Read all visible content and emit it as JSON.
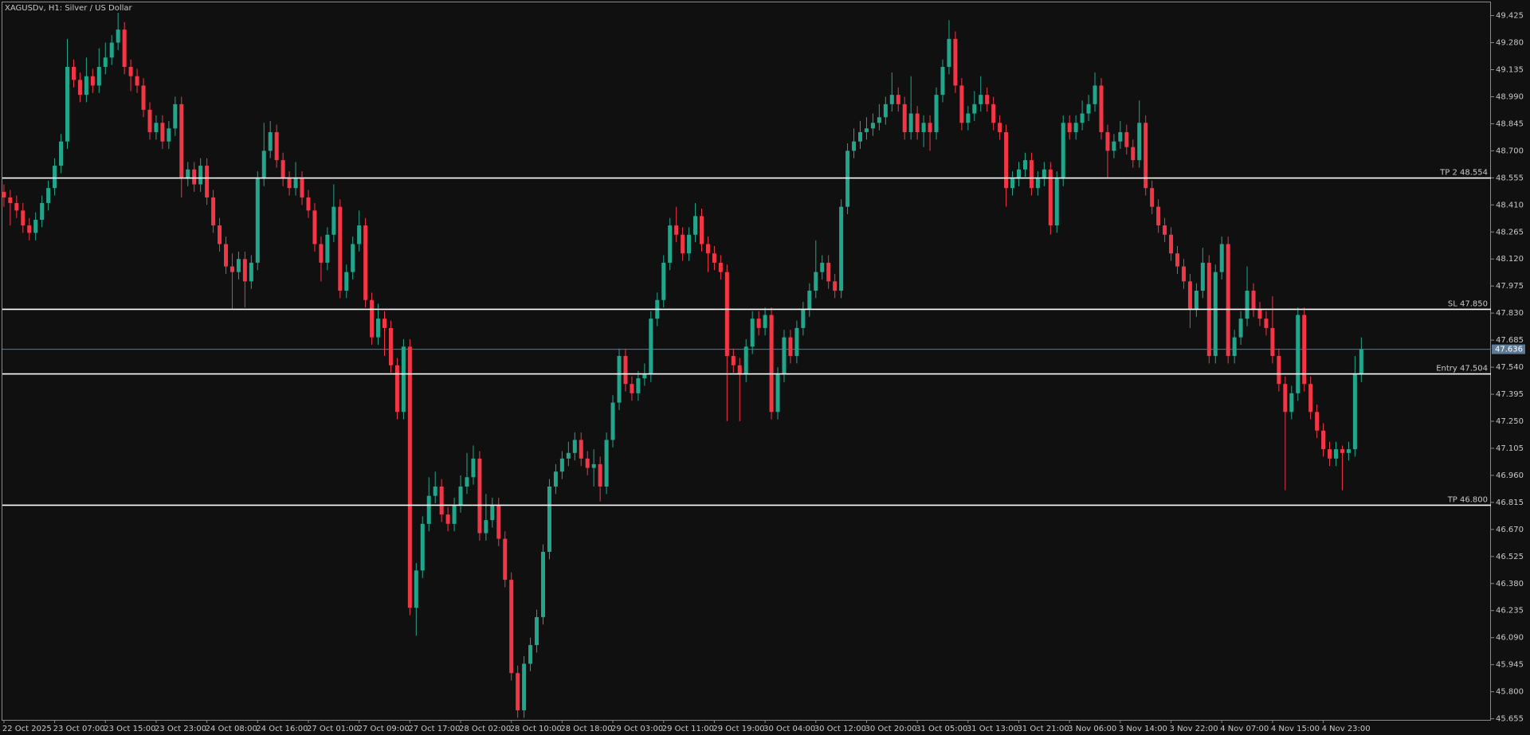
{
  "chart_data": {
    "type": "candlestick",
    "title": "XAGUSDv, H1:  Silver / US Dollar",
    "up_color": "#22a68b",
    "down_color": "#f23645",
    "level_color": "#ffffff",
    "last_price_color": "#5d7a96",
    "ylim": [
      45.649,
      49.5
    ],
    "yticks": [
      49.425,
      {
        "value": 49.28,
        "label": "49.280"
      },
      49.135,
      {
        "value": 48.99,
        "label": "48.990"
      },
      48.845,
      {
        "value": 48.7,
        "label": "48.700"
      },
      48.555,
      {
        "value": 48.41,
        "label": "48.410"
      },
      48.265,
      {
        "value": 48.12,
        "label": "48.120"
      },
      47.975,
      {
        "value": 47.83,
        "label": "47.830"
      },
      47.685,
      {
        "value": 47.54,
        "label": "47.540"
      },
      47.395,
      {
        "value": 47.25,
        "label": "47.250"
      },
      47.105,
      {
        "value": 46.96,
        "label": "46.960"
      },
      46.815,
      {
        "value": 46.67,
        "label": "46.670"
      },
      46.525,
      {
        "value": 46.38,
        "label": "46.380"
      },
      46.235,
      {
        "value": 46.09,
        "label": "46.090"
      },
      45.945,
      {
        "value": 45.8,
        "label": "45.800"
      },
      45.655
    ],
    "levels": [
      {
        "label": "TP 2 48.554",
        "value": 48.554
      },
      {
        "label": "SL 47.850",
        "value": 47.85
      },
      {
        "label": "Entry 47.504",
        "value": 47.504
      },
      {
        "label": "TP 46.800",
        "value": 46.8
      }
    ],
    "last_price": 47.636,
    "categories": [
      "22 Oct 2025",
      null,
      null,
      null,
      null,
      null,
      null,
      null,
      "23 Oct 07:00",
      null,
      null,
      null,
      null,
      null,
      null,
      null,
      "23 Oct 15:00",
      null,
      null,
      null,
      null,
      null,
      null,
      null,
      "23 Oct 23:00",
      null,
      null,
      null,
      null,
      null,
      null,
      null,
      "24 Oct 08:00",
      null,
      null,
      null,
      null,
      null,
      null,
      null,
      "24 Oct 16:00",
      null,
      null,
      null,
      null,
      null,
      null,
      null,
      "27 Oct 01:00",
      null,
      null,
      null,
      null,
      null,
      null,
      null,
      "27 Oct 09:00",
      null,
      null,
      null,
      null,
      null,
      null,
      null,
      "27 Oct 17:00",
      null,
      null,
      null,
      null,
      null,
      null,
      null,
      "28 Oct 02:00",
      null,
      null,
      null,
      null,
      null,
      null,
      null,
      "28 Oct 10:00",
      null,
      null,
      null,
      null,
      null,
      null,
      null,
      "28 Oct 18:00",
      null,
      null,
      null,
      null,
      null,
      null,
      null,
      "29 Oct 03:00",
      null,
      null,
      null,
      null,
      null,
      null,
      null,
      "29 Oct 11:00",
      null,
      null,
      null,
      null,
      null,
      null,
      null,
      "29 Oct 19:00",
      null,
      null,
      null,
      null,
      null,
      null,
      null,
      "30 Oct 04:00",
      null,
      null,
      null,
      null,
      null,
      null,
      null,
      "30 Oct 12:00",
      null,
      null,
      null,
      null,
      null,
      null,
      null,
      "30 Oct 20:00",
      null,
      null,
      null,
      null,
      null,
      null,
      null,
      "31 Oct 05:00",
      null,
      null,
      null,
      null,
      null,
      null,
      null,
      "31 Oct 13:00",
      null,
      null,
      null,
      null,
      null,
      null,
      null,
      "31 Oct 21:00",
      null,
      null,
      null,
      null,
      null,
      null,
      null,
      "3 Nov 06:00",
      null,
      null,
      null,
      null,
      null,
      null,
      null,
      "3 Nov 14:00",
      null,
      null,
      null,
      null,
      null,
      null,
      null,
      "3 Nov 22:00",
      null,
      null,
      null,
      null,
      null,
      null,
      null,
      "4 Nov 07:00",
      null,
      null,
      null,
      null,
      null,
      null,
      null,
      "4 Nov 15:00",
      null,
      null,
      null,
      null,
      null,
      null,
      null,
      "4 Nov 23:00",
      null,
      null,
      null,
      null,
      null,
      null
    ],
    "open": [
      48.48,
      48.45,
      48.42,
      48.38,
      48.3,
      48.26,
      48.33,
      48.42,
      48.5,
      48.62,
      48.75,
      49.15,
      49.08,
      49.0,
      49.1,
      49.05,
      49.15,
      49.2,
      49.28,
      49.35,
      49.15,
      49.1,
      49.05,
      48.92,
      48.8,
      48.85,
      48.75,
      48.82,
      48.95,
      48.55,
      48.6,
      48.52,
      48.62,
      48.45,
      48.3,
      48.2,
      48.08,
      48.05,
      48.12,
      48.0,
      48.1,
      48.55,
      48.7,
      48.8,
      48.65,
      48.55,
      48.5,
      48.55,
      48.45,
      48.38,
      48.2,
      48.1,
      48.25,
      48.4,
      47.95,
      48.05,
      48.2,
      48.3,
      47.9,
      47.7,
      47.8,
      47.75,
      47.55,
      47.3,
      47.65,
      46.25,
      46.45,
      46.7,
      46.85,
      46.9,
      46.75,
      46.7,
      46.8,
      46.9,
      46.95,
      47.05,
      46.65,
      46.72,
      46.8,
      46.62,
      46.4,
      45.9,
      45.7,
      45.95,
      46.05,
      46.2,
      46.55,
      46.9,
      46.98,
      47.05,
      47.08,
      47.15,
      47.05,
      47.0,
      47.02,
      46.9,
      47.15,
      47.35,
      47.6,
      47.45,
      47.4,
      47.48,
      47.5,
      47.8,
      47.9,
      48.1,
      48.3,
      48.25,
      48.15,
      48.25,
      48.35,
      48.2,
      48.15,
      48.1,
      48.05,
      47.6,
      47.55,
      47.5,
      47.65,
      47.8,
      47.75,
      47.82,
      47.3,
      47.5,
      47.7,
      47.6,
      47.75,
      47.85,
      47.95,
      48.05,
      48.1,
      48.0,
      47.95,
      48.4,
      48.7,
      48.75,
      48.8,
      48.82,
      48.85,
      48.88,
      48.95,
      49.0,
      48.95,
      48.8,
      48.9,
      48.8,
      48.85,
      48.8,
      49.0,
      49.15,
      49.3,
      49.05,
      48.85,
      48.9,
      48.95,
      49.0,
      48.95,
      48.85,
      48.8,
      48.5,
      48.55,
      48.6,
      48.65,
      48.5,
      48.55,
      48.6,
      48.3,
      48.55,
      48.85,
      48.8,
      48.85,
      48.9,
      48.95,
      49.05,
      48.8,
      48.7,
      48.75,
      48.8,
      48.72,
      48.65,
      48.85,
      48.5,
      48.4,
      48.3,
      48.25,
      48.15,
      48.08,
      48.0,
      47.85,
      47.95,
      48.1,
      47.6,
      48.05,
      48.2,
      47.6,
      47.7,
      47.8,
      47.95,
      47.85,
      47.8,
      47.75,
      47.6,
      47.45,
      47.3,
      47.4,
      47.82,
      47.45,
      47.3,
      47.2,
      47.1,
      47.05,
      47.1,
      47.08,
      47.1,
      47.5
    ],
    "high": [
      48.52,
      48.49,
      48.46,
      48.42,
      48.34,
      48.37,
      48.46,
      48.54,
      48.66,
      48.79,
      49.3,
      49.19,
      49.12,
      49.2,
      49.14,
      49.25,
      49.28,
      49.32,
      49.44,
      49.39,
      49.19,
      49.14,
      49.09,
      48.96,
      48.89,
      48.89,
      48.86,
      48.99,
      48.99,
      48.64,
      48.64,
      48.66,
      48.66,
      48.49,
      48.34,
      48.24,
      48.15,
      48.16,
      48.16,
      48.14,
      48.59,
      48.85,
      48.86,
      48.84,
      48.69,
      48.59,
      48.64,
      48.59,
      48.49,
      48.42,
      48.24,
      48.29,
      48.52,
      48.44,
      48.09,
      48.24,
      48.38,
      48.34,
      47.94,
      47.88,
      47.84,
      47.79,
      47.59,
      47.69,
      47.69,
      46.49,
      46.74,
      46.95,
      46.98,
      46.94,
      46.79,
      46.84,
      46.96,
      47.08,
      47.12,
      47.09,
      46.86,
      46.84,
      46.84,
      46.66,
      46.44,
      45.94,
      45.99,
      46.09,
      46.24,
      46.59,
      46.94,
      47.02,
      47.09,
      47.14,
      47.19,
      47.19,
      47.09,
      47.1,
      47.06,
      47.19,
      47.39,
      47.64,
      47.64,
      47.49,
      47.52,
      47.56,
      47.84,
      47.94,
      48.14,
      48.34,
      48.4,
      48.29,
      48.29,
      48.42,
      48.39,
      48.24,
      48.19,
      48.14,
      48.09,
      47.64,
      47.59,
      47.69,
      47.84,
      47.84,
      47.86,
      47.86,
      47.54,
      47.74,
      47.74,
      47.79,
      47.89,
      47.99,
      48.22,
      48.14,
      48.14,
      48.04,
      48.44,
      48.74,
      48.82,
      48.86,
      48.88,
      48.9,
      48.95,
      48.99,
      49.12,
      49.04,
      48.99,
      49.1,
      48.94,
      48.89,
      48.89,
      49.04,
      49.19,
      49.4,
      49.34,
      49.09,
      48.94,
      49.02,
      49.1,
      49.04,
      48.99,
      48.89,
      48.84,
      48.59,
      48.64,
      48.69,
      48.69,
      48.59,
      48.64,
      48.64,
      48.59,
      48.89,
      48.89,
      48.89,
      48.97,
      49.0,
      49.12,
      49.09,
      48.84,
      48.79,
      48.86,
      48.84,
      48.76,
      48.97,
      48.89,
      48.54,
      48.44,
      48.34,
      48.29,
      48.19,
      48.12,
      48.04,
      47.99,
      48.18,
      48.14,
      48.09,
      48.24,
      48.24,
      47.74,
      47.84,
      48.08,
      47.99,
      47.89,
      47.84,
      47.92,
      47.64,
      47.49,
      47.44,
      47.86,
      47.86,
      47.49,
      47.34,
      47.24,
      47.14,
      47.14,
      47.12,
      47.14,
      47.6,
      47.7
    ],
    "low": [
      48.4,
      48.3,
      48.34,
      48.26,
      48.22,
      48.22,
      48.29,
      48.38,
      48.46,
      48.58,
      48.71,
      49.04,
      48.96,
      48.96,
      49.01,
      49.01,
      49.11,
      49.16,
      49.24,
      49.11,
      49.02,
      49.01,
      48.88,
      48.76,
      48.76,
      48.71,
      48.71,
      48.78,
      48.45,
      48.51,
      48.48,
      48.48,
      48.41,
      48.26,
      48.16,
      48.04,
      47.85,
      48.01,
      47.86,
      47.96,
      48.06,
      48.51,
      48.66,
      48.61,
      48.51,
      48.46,
      48.46,
      48.41,
      48.34,
      48.16,
      48.0,
      48.06,
      48.21,
      47.91,
      47.91,
      48.01,
      48.16,
      47.86,
      47.66,
      47.66,
      47.6,
      47.51,
      47.26,
      47.26,
      46.21,
      46.1,
      46.41,
      46.66,
      46.81,
      46.71,
      46.66,
      46.66,
      46.76,
      46.86,
      46.91,
      46.61,
      46.61,
      46.68,
      46.58,
      46.36,
      45.86,
      45.66,
      45.66,
      45.91,
      46.01,
      46.16,
      46.51,
      46.86,
      46.94,
      47.01,
      47.04,
      47.01,
      46.96,
      46.9,
      46.82,
      46.86,
      47.11,
      47.31,
      47.41,
      47.36,
      47.36,
      47.44,
      47.46,
      47.76,
      47.86,
      48.06,
      48.21,
      48.11,
      48.11,
      48.21,
      48.16,
      48.05,
      48.06,
      48.01,
      47.25,
      47.51,
      47.25,
      47.46,
      47.61,
      47.71,
      47.71,
      47.26,
      47.26,
      47.46,
      47.56,
      47.56,
      47.71,
      47.81,
      47.91,
      48.01,
      47.96,
      47.91,
      47.91,
      48.36,
      48.66,
      48.71,
      48.76,
      48.78,
      48.81,
      48.84,
      48.91,
      48.91,
      48.76,
      48.76,
      48.76,
      48.72,
      48.7,
      48.76,
      48.96,
      49.11,
      49.01,
      48.81,
      48.81,
      48.86,
      48.91,
      48.91,
      48.81,
      48.76,
      48.4,
      48.46,
      48.51,
      48.56,
      48.46,
      48.46,
      48.51,
      48.25,
      48.26,
      48.51,
      48.76,
      48.76,
      48.81,
      48.86,
      48.91,
      48.76,
      48.55,
      48.66,
      48.71,
      48.68,
      48.61,
      48.61,
      48.46,
      48.36,
      48.26,
      48.21,
      48.11,
      48.04,
      47.96,
      47.75,
      47.81,
      47.91,
      47.56,
      47.56,
      48.01,
      47.56,
      47.56,
      47.66,
      47.76,
      47.81,
      47.76,
      47.71,
      47.56,
      47.41,
      46.88,
      47.26,
      47.36,
      47.41,
      47.26,
      47.16,
      47.06,
      47.01,
      47.01,
      46.88,
      47.04,
      47.06,
      47.46
    ],
    "close": [
      48.45,
      48.42,
      48.38,
      48.3,
      48.26,
      48.33,
      48.42,
      48.5,
      48.62,
      48.75,
      49.15,
      49.08,
      49.0,
      49.1,
      49.05,
      49.15,
      49.2,
      49.28,
      49.35,
      49.15,
      49.1,
      49.05,
      48.92,
      48.8,
      48.85,
      48.75,
      48.82,
      48.95,
      48.55,
      48.6,
      48.52,
      48.62,
      48.45,
      48.3,
      48.2,
      48.08,
      48.05,
      48.12,
      48.0,
      48.1,
      48.55,
      48.7,
      48.8,
      48.65,
      48.55,
      48.5,
      48.55,
      48.45,
      48.38,
      48.2,
      48.1,
      48.25,
      48.4,
      47.95,
      48.05,
      48.2,
      48.3,
      47.9,
      47.7,
      47.8,
      47.75,
      47.55,
      47.3,
      47.65,
      46.25,
      46.45,
      46.7,
      46.85,
      46.9,
      46.75,
      46.7,
      46.8,
      46.9,
      46.95,
      47.05,
      46.65,
      46.72,
      46.8,
      46.62,
      46.4,
      45.9,
      45.7,
      45.95,
      46.05,
      46.2,
      46.55,
      46.9,
      46.98,
      47.05,
      47.08,
      47.15,
      47.05,
      47.0,
      47.02,
      46.9,
      47.15,
      47.35,
      47.6,
      47.45,
      47.4,
      47.48,
      47.5,
      47.8,
      47.9,
      48.1,
      48.3,
      48.25,
      48.15,
      48.25,
      48.35,
      48.2,
      48.15,
      48.1,
      48.05,
      47.6,
      47.55,
      47.5,
      47.65,
      47.8,
      47.75,
      47.82,
      47.3,
      47.5,
      47.7,
      47.6,
      47.75,
      47.85,
      47.95,
      48.05,
      48.1,
      48.0,
      47.95,
      48.4,
      48.7,
      48.75,
      48.8,
      48.82,
      48.85,
      48.88,
      48.95,
      49.0,
      48.95,
      48.8,
      48.9,
      48.8,
      48.85,
      48.8,
      49.0,
      49.15,
      49.3,
      49.05,
      48.85,
      48.9,
      48.95,
      49.0,
      48.95,
      48.85,
      48.8,
      48.5,
      48.55,
      48.6,
      48.65,
      48.5,
      48.55,
      48.6,
      48.3,
      48.55,
      48.85,
      48.8,
      48.85,
      48.9,
      48.95,
      49.05,
      48.8,
      48.7,
      48.75,
      48.8,
      48.72,
      48.65,
      48.85,
      48.5,
      48.4,
      48.3,
      48.25,
      48.15,
      48.08,
      48.0,
      47.85,
      47.95,
      48.1,
      47.6,
      48.05,
      48.2,
      47.6,
      47.7,
      47.8,
      47.95,
      47.85,
      47.8,
      47.75,
      47.6,
      47.45,
      47.3,
      47.4,
      47.82,
      47.45,
      47.3,
      47.2,
      47.1,
      47.05,
      47.1,
      47.08,
      47.1,
      47.5,
      47.636
    ]
  }
}
